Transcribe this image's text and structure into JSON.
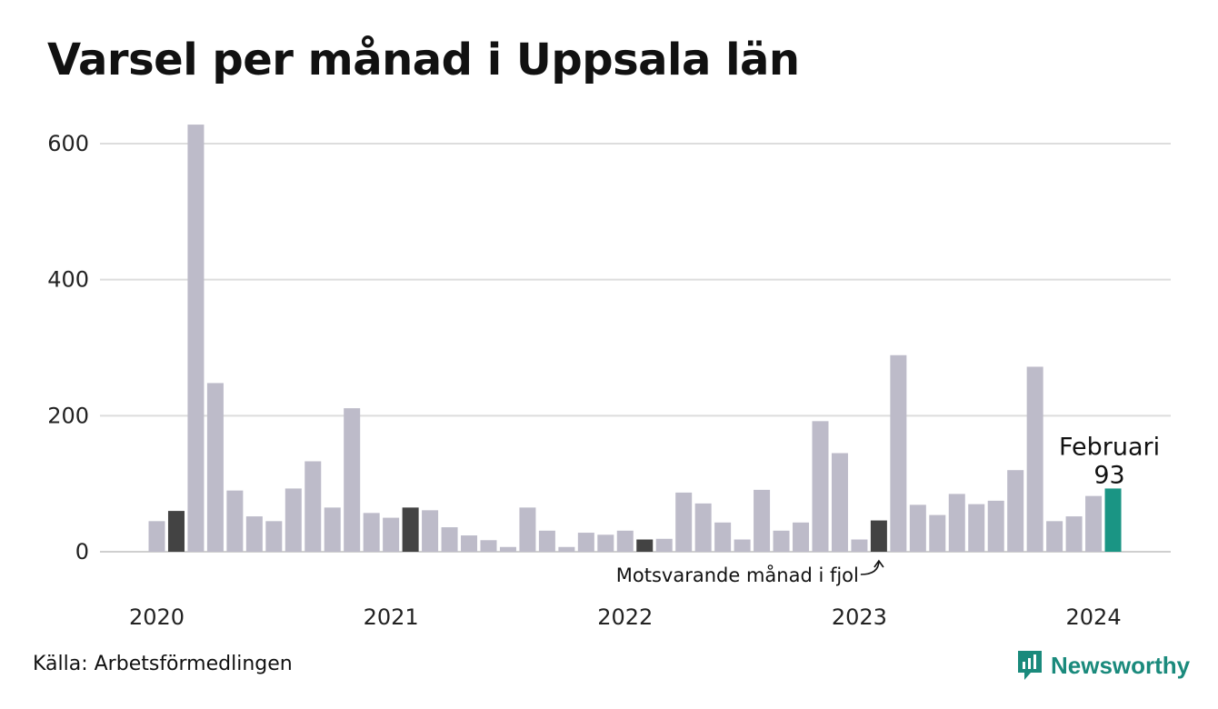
{
  "chart_data": {
    "type": "bar",
    "title": "Varsel per månad i Uppsala län",
    "xlabel": "",
    "ylabel": "",
    "ylim": [
      0,
      640
    ],
    "yticks": [
      0,
      200,
      400,
      600
    ],
    "xtick_labels": [
      {
        "label": "2020",
        "at_index": 0
      },
      {
        "label": "2021",
        "at_index": 12
      },
      {
        "label": "2022",
        "at_index": 24
      },
      {
        "label": "2023",
        "at_index": 36
      },
      {
        "label": "2024",
        "at_index": 48
      }
    ],
    "grid": true,
    "categories": [
      "2020-01",
      "2020-02",
      "2020-03",
      "2020-04",
      "2020-05",
      "2020-06",
      "2020-07",
      "2020-08",
      "2020-09",
      "2020-10",
      "2020-11",
      "2020-12",
      "2021-01",
      "2021-02",
      "2021-03",
      "2021-04",
      "2021-05",
      "2021-06",
      "2021-07",
      "2021-08",
      "2021-09",
      "2021-10",
      "2021-11",
      "2021-12",
      "2022-01",
      "2022-02",
      "2022-03",
      "2022-04",
      "2022-05",
      "2022-06",
      "2022-07",
      "2022-08",
      "2022-09",
      "2022-10",
      "2022-11",
      "2022-12",
      "2023-01",
      "2023-02",
      "2023-03",
      "2023-04",
      "2023-05",
      "2023-06",
      "2023-07",
      "2023-08",
      "2023-09",
      "2023-10",
      "2023-11",
      "2023-12",
      "2024-01",
      "2024-02"
    ],
    "values": [
      45,
      60,
      628,
      248,
      90,
      52,
      45,
      93,
      133,
      65,
      211,
      57,
      50,
      65,
      61,
      36,
      24,
      17,
      7,
      65,
      31,
      7,
      28,
      25,
      31,
      18,
      19,
      87,
      71,
      43,
      18,
      91,
      31,
      43,
      192,
      145,
      18,
      46,
      289,
      69,
      54,
      85,
      70,
      75,
      120,
      272,
      45,
      52,
      82,
      93
    ],
    "highlight_same_month": [
      1,
      13,
      25,
      37
    ],
    "latest_index": 49,
    "latest_label": "Februari",
    "latest_value": "93",
    "annotation": "Motsvarande månad i fjol",
    "colors": {
      "default": "#bdbbc9",
      "same_month": "#434343",
      "latest": "#1a9584",
      "grid": "#dddddd"
    }
  },
  "source": "Källa: Arbetsförmedlingen",
  "brand": {
    "name": "Newsworthy",
    "icon": "newsworthy-logo-icon",
    "color": "#1a8a7c"
  }
}
